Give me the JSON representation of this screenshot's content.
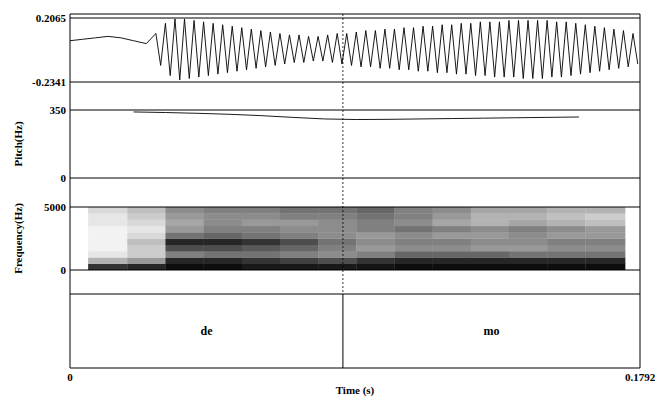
{
  "chart_data": [
    {
      "type": "line",
      "color": "#000000",
      "x": [
        0,
        0.004,
        0.008,
        0.012,
        0.016,
        0.02,
        0.024,
        0.027,
        0.0285,
        0.03,
        0.0315,
        0.033,
        0.0345,
        0.036,
        0.0375,
        0.039,
        0.0405,
        0.042,
        0.0435,
        0.045,
        0.0465,
        0.048,
        0.0495,
        0.051,
        0.0525,
        0.054,
        0.0555,
        0.057,
        0.0585,
        0.06,
        0.0615,
        0.063,
        0.0645,
        0.066,
        0.0675,
        0.069,
        0.0705,
        0.072,
        0.0735,
        0.075,
        0.0765,
        0.078,
        0.0795,
        0.081,
        0.0825,
        0.084,
        0.0855,
        0.087,
        0.0885,
        0.09,
        0.0915,
        0.093,
        0.0945,
        0.096,
        0.0975,
        0.099,
        0.1005,
        0.102,
        0.1035,
        0.105,
        0.1065,
        0.108,
        0.1095,
        0.111,
        0.1125,
        0.114,
        0.1155,
        0.117,
        0.1185,
        0.12,
        0.1215,
        0.123,
        0.1245,
        0.126,
        0.1275,
        0.129,
        0.1305,
        0.132,
        0.1335,
        0.135,
        0.1365,
        0.138,
        0.1395,
        0.141,
        0.1425,
        0.144,
        0.1455,
        0.147,
        0.1485,
        0.15,
        0.1515,
        0.153,
        0.1545,
        0.156,
        0.1575,
        0.159,
        0.1605,
        0.162,
        0.1635,
        0.165,
        0.1665,
        0.168,
        0.1695,
        0.171,
        0.1725,
        0.174,
        0.1755,
        0.177,
        0.1785
      ],
      "values": [
        0.05,
        0.06,
        0.07,
        0.08,
        0.07,
        0.05,
        0.03,
        0.1,
        -0.12,
        0.17,
        -0.19,
        0.2,
        -0.22,
        0.2,
        -0.21,
        0.19,
        -0.2,
        0.18,
        -0.19,
        0.17,
        -0.18,
        0.16,
        -0.17,
        0.15,
        -0.16,
        0.14,
        -0.15,
        0.13,
        -0.14,
        0.12,
        -0.13,
        0.11,
        -0.12,
        0.1,
        -0.11,
        0.09,
        -0.1,
        0.09,
        -0.1,
        0.08,
        -0.09,
        0.08,
        -0.09,
        0.09,
        -0.1,
        0.1,
        -0.11,
        0.1,
        -0.12,
        0.11,
        -0.13,
        0.12,
        -0.13,
        0.12,
        -0.14,
        0.13,
        -0.14,
        0.13,
        -0.15,
        0.14,
        -0.15,
        0.14,
        -0.16,
        0.15,
        -0.16,
        0.15,
        -0.17,
        0.16,
        -0.17,
        0.16,
        -0.18,
        0.17,
        -0.18,
        0.17,
        -0.19,
        0.18,
        -0.19,
        0.18,
        -0.2,
        0.18,
        -0.2,
        0.19,
        -0.2,
        0.19,
        -0.21,
        0.19,
        -0.21,
        0.19,
        -0.21,
        0.19,
        -0.2,
        0.18,
        -0.2,
        0.18,
        -0.19,
        0.17,
        -0.18,
        0.16,
        -0.17,
        0.15,
        -0.16,
        0.14,
        -0.15,
        0.13,
        -0.14,
        0.12,
        -0.13,
        0.1,
        -0.11
      ],
      "xlim": [
        0,
        0.1792
      ],
      "ylim": [
        -0.2341,
        0.2065
      ],
      "yticks": [
        -0.2341,
        0.2065
      ]
    },
    {
      "type": "line",
      "color": "#000000",
      "y_label": "Pitch(Hz)",
      "x": [
        0.02,
        0.03,
        0.04,
        0.05,
        0.06,
        0.07,
        0.08,
        0.09,
        0.1,
        0.11,
        0.12,
        0.13,
        0.14,
        0.15,
        0.16
      ],
      "values": [
        340,
        337,
        333,
        328,
        321,
        312,
        304,
        301,
        302,
        304,
        306,
        308,
        310,
        312,
        314
      ],
      "xlim": [
        0,
        0.1792
      ],
      "ylim": [
        0,
        350
      ],
      "yticks": [
        0,
        350
      ]
    },
    {
      "type": "heatmap",
      "y_label": "Frequency(Hz)",
      "x_edges": [
        0.0057,
        0.018,
        0.03,
        0.042,
        0.054,
        0.066,
        0.078,
        0.09,
        0.102,
        0.114,
        0.126,
        0.138,
        0.15,
        0.162,
        0.1745
      ],
      "y_edges": [
        0,
        500,
        1000,
        1500,
        2000,
        2500,
        3000,
        3500,
        4000,
        4500,
        5000
      ],
      "cells": [
        [
          80,
          85,
          95,
          95,
          90,
          90,
          90,
          92,
          95,
          95,
          95,
          95,
          95,
          95
        ],
        [
          30,
          40,
          85,
          85,
          80,
          75,
          70,
          80,
          85,
          85,
          85,
          85,
          85,
          85
        ],
        [
          10,
          20,
          50,
          55,
          55,
          50,
          45,
          50,
          60,
          60,
          60,
          55,
          55,
          55
        ],
        [
          5,
          20,
          70,
          70,
          65,
          60,
          50,
          40,
          45,
          45,
          40,
          40,
          45,
          45
        ],
        [
          5,
          25,
          85,
          85,
          80,
          70,
          55,
          45,
          50,
          50,
          45,
          45,
          50,
          50
        ],
        [
          5,
          15,
          55,
          60,
          55,
          50,
          45,
          40,
          45,
          40,
          40,
          45,
          40,
          40
        ],
        [
          5,
          10,
          40,
          50,
          50,
          45,
          45,
          50,
          55,
          50,
          45,
          50,
          45,
          40
        ],
        [
          10,
          15,
          35,
          45,
          40,
          40,
          45,
          50,
          45,
          35,
          30,
          35,
          30,
          25
        ],
        [
          10,
          20,
          40,
          45,
          45,
          50,
          50,
          55,
          50,
          40,
          30,
          30,
          25,
          20
        ],
        [
          15,
          25,
          45,
          50,
          50,
          55,
          55,
          60,
          50,
          45,
          35,
          35,
          30,
          30
        ]
      ],
      "zlim": [
        0,
        100
      ],
      "xlim": [
        0,
        0.1792
      ],
      "ylim": [
        0,
        5000
      ],
      "yticks": [
        0,
        5000
      ]
    },
    {
      "type": "annotation_tier",
      "x_label": "Time (s)",
      "labels": [
        "de",
        "mo"
      ],
      "boundaries": [
        0.0858
      ],
      "xlim": [
        0,
        0.1792
      ],
      "xticks": [
        0,
        0.1792
      ]
    }
  ]
}
